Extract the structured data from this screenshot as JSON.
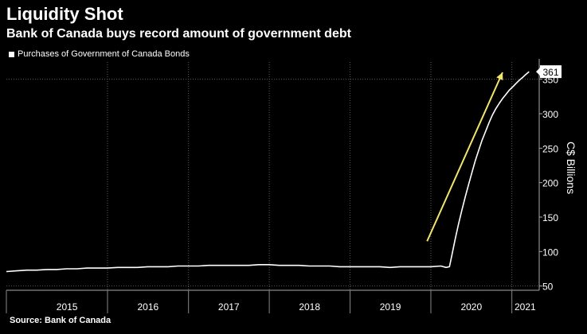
{
  "header": {
    "title": "Liquidity Shot",
    "subtitle": "Bank of Canada buys record amount of government debt"
  },
  "footer": {
    "source": "Source: Bank of Canada"
  },
  "colors": {
    "background": "#000000",
    "line": "#ffffff",
    "arrow": "#f2e56b",
    "grid": "#5a5a5a"
  },
  "chart_data": {
    "type": "line",
    "title": "Liquidity Shot",
    "subtitle": "Bank of Canada buys record amount of government debt",
    "ylabel": "C$ Billions",
    "xlabel": "",
    "ylim": [
      45,
      375
    ],
    "xlim": [
      "2014-10-01",
      "2021-05-01"
    ],
    "y_axis_position": "right",
    "y_ticks": [
      50,
      100,
      150,
      200,
      250,
      300,
      350
    ],
    "x_tick_labels": [
      "2015",
      "2016",
      "2017",
      "2018",
      "2019",
      "2020",
      "2021"
    ],
    "grid": "vertical dotted lines at year boundaries, horizontal dotted lines at 50 and 350",
    "legend": {
      "placement": "top-left",
      "entries": [
        "Purchases of Government of Canada Bonds"
      ]
    },
    "series": [
      {
        "name": "Purchases of Government of Canada Bonds",
        "color": "#ffffff",
        "points": [
          [
            "2014-10-01",
            71
          ],
          [
            "2014-11-15",
            72
          ],
          [
            "2015-01-01",
            73
          ],
          [
            "2015-02-15",
            73
          ],
          [
            "2015-04-01",
            74
          ],
          [
            "2015-05-15",
            74
          ],
          [
            "2015-07-01",
            75
          ],
          [
            "2015-08-15",
            75
          ],
          [
            "2015-10-01",
            76
          ],
          [
            "2015-11-15",
            76
          ],
          [
            "2016-01-01",
            76
          ],
          [
            "2016-02-15",
            77
          ],
          [
            "2016-04-01",
            77
          ],
          [
            "2016-05-15",
            77
          ],
          [
            "2016-07-01",
            78
          ],
          [
            "2016-08-15",
            78
          ],
          [
            "2016-10-01",
            78
          ],
          [
            "2016-11-15",
            79
          ],
          [
            "2017-01-01",
            79
          ],
          [
            "2017-02-15",
            79
          ],
          [
            "2017-04-01",
            80
          ],
          [
            "2017-05-15",
            80
          ],
          [
            "2017-07-01",
            80
          ],
          [
            "2017-08-15",
            80
          ],
          [
            "2017-10-01",
            80
          ],
          [
            "2017-11-15",
            81
          ],
          [
            "2018-01-01",
            81
          ],
          [
            "2018-02-15",
            80
          ],
          [
            "2018-04-01",
            80
          ],
          [
            "2018-05-15",
            80
          ],
          [
            "2018-07-01",
            79
          ],
          [
            "2018-08-15",
            79
          ],
          [
            "2018-10-01",
            79
          ],
          [
            "2018-11-15",
            78
          ],
          [
            "2019-01-01",
            78
          ],
          [
            "2019-02-15",
            78
          ],
          [
            "2019-04-01",
            78
          ],
          [
            "2019-05-15",
            78
          ],
          [
            "2019-07-01",
            77
          ],
          [
            "2019-08-15",
            78
          ],
          [
            "2019-10-01",
            78
          ],
          [
            "2019-11-15",
            78
          ],
          [
            "2020-01-01",
            78
          ],
          [
            "2020-02-15",
            79
          ],
          [
            "2020-03-10",
            77
          ],
          [
            "2020-03-25",
            78
          ],
          [
            "2020-04-05",
            95
          ],
          [
            "2020-04-20",
            118
          ],
          [
            "2020-05-05",
            140
          ],
          [
            "2020-05-20",
            160
          ],
          [
            "2020-06-05",
            180
          ],
          [
            "2020-06-20",
            198
          ],
          [
            "2020-07-05",
            215
          ],
          [
            "2020-07-20",
            232
          ],
          [
            "2020-08-05",
            248
          ],
          [
            "2020-08-20",
            262
          ],
          [
            "2020-09-05",
            275
          ],
          [
            "2020-09-20",
            287
          ],
          [
            "2020-10-05",
            298
          ],
          [
            "2020-10-20",
            307
          ],
          [
            "2020-11-05",
            315
          ],
          [
            "2020-11-20",
            322
          ],
          [
            "2020-12-05",
            328
          ],
          [
            "2020-12-20",
            334
          ],
          [
            "2021-01-05",
            339
          ],
          [
            "2021-01-20",
            344
          ],
          [
            "2021-02-05",
            349
          ],
          [
            "2021-02-20",
            353
          ],
          [
            "2021-03-05",
            357
          ],
          [
            "2021-03-20",
            361
          ]
        ]
      }
    ],
    "annotations": [
      {
        "type": "label",
        "text": "361",
        "value": 361,
        "placement": "right axis at last value"
      },
      {
        "type": "arrow",
        "color": "#f2e56b",
        "description": "upward arrow indicating rapid increase",
        "from": [
          "2019-12-15",
          115
        ],
        "to": [
          "2020-11-20",
          360
        ]
      }
    ]
  }
}
